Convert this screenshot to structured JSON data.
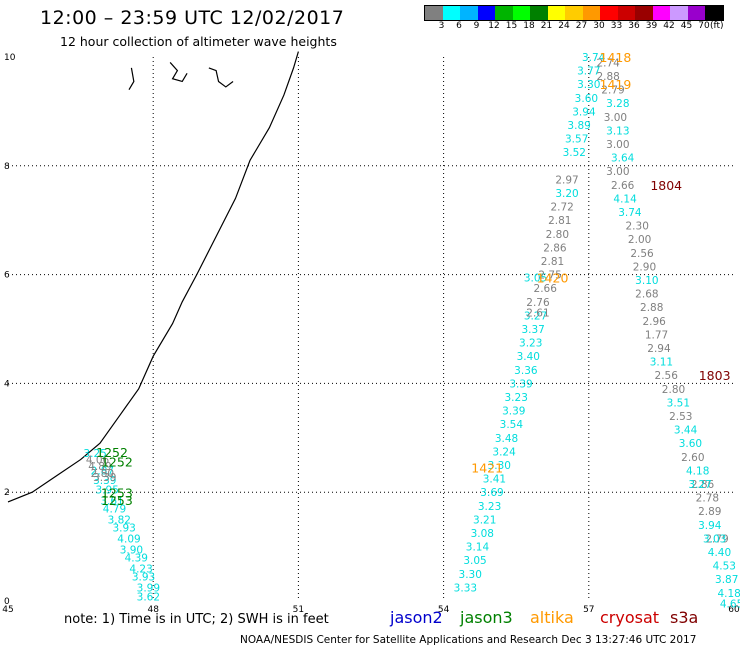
{
  "header": {
    "title": "12:00 – 23:59 UTC 12/02/2017",
    "subtitle": "12 hour collection of altimeter wave heights"
  },
  "legend": {
    "colors": [
      "#808080",
      "#00ffff",
      "#00b4ff",
      "#0000ff",
      "#00b400",
      "#00ff00",
      "#008000",
      "#ffff00",
      "#ffcc00",
      "#ff9900",
      "#ff0000",
      "#cc0000",
      "#990000",
      "#ff00ff",
      "#cc99ff",
      "#9900cc",
      "#000000"
    ],
    "labels": [
      "3",
      "6",
      "9",
      "12",
      "15",
      "18",
      "21",
      "24",
      "27",
      "30",
      "33",
      "36",
      "39",
      "42",
      "45",
      "70",
      "(ft)"
    ]
  },
  "axes": {
    "x_ticks": [
      "45",
      "48",
      "51",
      "54",
      "57",
      "60"
    ],
    "y_ticks": [
      "0",
      "2",
      "4",
      "6",
      "8",
      "10"
    ],
    "xlim": [
      45,
      60
    ],
    "ylim": [
      0,
      10
    ]
  },
  "colors": {
    "jason2": "#0000cc",
    "jason3": "#008000",
    "altika": "#ff9900",
    "cryosat": "#cc0000",
    "s3a": "#800000",
    "cyan": "#00dddd",
    "gray": "#808080",
    "coast": "#000000",
    "grid": "#000000"
  },
  "tracks": [
    {
      "id": "t1-cyan",
      "color": "cyan",
      "points": [
        [
          46.8,
          2.72,
          "3.25"
        ],
        [
          46.95,
          2.4,
          "2.87"
        ],
        [
          47.0,
          2.22,
          "3.39"
        ],
        [
          47.05,
          2.05,
          "3.95"
        ],
        [
          47.15,
          1.85,
          "3.61"
        ],
        [
          47.2,
          1.7,
          "4.79"
        ],
        [
          47.3,
          1.5,
          "3.82"
        ],
        [
          47.4,
          1.35,
          "3.93"
        ],
        [
          47.5,
          1.15,
          "4.09"
        ],
        [
          47.55,
          0.95,
          "3.90"
        ],
        [
          47.65,
          0.8,
          "4.39"
        ],
        [
          47.75,
          0.6,
          "4.23"
        ],
        [
          47.8,
          0.45,
          "3.93"
        ],
        [
          47.9,
          0.25,
          "3.99"
        ],
        [
          47.9,
          0.08,
          "3.62"
        ]
      ]
    },
    {
      "id": "t1-gray",
      "color": "gray",
      "points": [
        [
          46.85,
          2.6,
          "4.06"
        ],
        [
          46.9,
          2.48,
          "4.89"
        ],
        [
          46.95,
          2.35,
          "2.80"
        ],
        [
          47.0,
          2.28,
          "3.39"
        ]
      ]
    },
    {
      "id": "t2-cyan",
      "color": "cyan",
      "points": [
        [
          57.1,
          10.0,
          "3.74"
        ],
        [
          57.0,
          9.75,
          "3.77"
        ],
        [
          57.0,
          9.5,
          "3.30"
        ],
        [
          56.95,
          9.25,
          "3.60"
        ],
        [
          56.9,
          9.0,
          "3.94"
        ],
        [
          56.8,
          8.75,
          "3.89"
        ],
        [
          56.75,
          8.5,
          "3.57"
        ],
        [
          56.7,
          8.25,
          "3.52"
        ],
        [
          56.55,
          7.5,
          "3.20"
        ],
        [
          55.9,
          5.95,
          "3.05"
        ],
        [
          55.9,
          5.25,
          "3.27"
        ],
        [
          55.85,
          5.0,
          "3.37"
        ],
        [
          55.8,
          4.75,
          "3.23"
        ],
        [
          55.75,
          4.5,
          "3.40"
        ],
        [
          55.7,
          4.25,
          "3.36"
        ],
        [
          55.6,
          4.0,
          "3.39"
        ],
        [
          55.5,
          3.75,
          "3.23"
        ],
        [
          55.45,
          3.5,
          "3.39"
        ],
        [
          55.4,
          3.25,
          "3.54"
        ],
        [
          55.3,
          3.0,
          "3.48"
        ],
        [
          55.25,
          2.75,
          "3.24"
        ],
        [
          55.15,
          2.5,
          "3.30"
        ],
        [
          55.05,
          2.25,
          "3.41"
        ],
        [
          55.0,
          2.0,
          "3.69"
        ],
        [
          54.95,
          1.75,
          "3.23"
        ],
        [
          54.85,
          1.5,
          "3.21"
        ],
        [
          54.8,
          1.25,
          "3.08"
        ],
        [
          54.7,
          1.0,
          "3.14"
        ],
        [
          54.65,
          0.75,
          "3.05"
        ],
        [
          54.55,
          0.5,
          "3.30"
        ],
        [
          54.45,
          0.25,
          "3.33"
        ]
      ]
    },
    {
      "id": "t2-gray",
      "color": "gray",
      "points": [
        [
          56.55,
          7.75,
          "2.97"
        ],
        [
          56.45,
          7.25,
          "2.72"
        ],
        [
          56.4,
          7.0,
          "2.81"
        ],
        [
          56.35,
          6.75,
          "2.80"
        ],
        [
          56.3,
          6.5,
          "2.86"
        ],
        [
          56.25,
          6.25,
          "2.81"
        ],
        [
          56.2,
          6.0,
          "2.75"
        ],
        [
          56.1,
          5.75,
          "2.66"
        ],
        [
          55.95,
          5.5,
          "2.76"
        ],
        [
          55.95,
          5.3,
          "2.61"
        ]
      ]
    },
    {
      "id": "t3-gray",
      "color": "gray",
      "points": [
        [
          57.4,
          9.9,
          "2.74"
        ],
        [
          57.4,
          9.65,
          "2.88"
        ],
        [
          57.5,
          9.4,
          "2.79"
        ],
        [
          57.55,
          8.9,
          "3.00"
        ],
        [
          57.6,
          8.4,
          "3.00"
        ],
        [
          57.6,
          7.9,
          "3.00"
        ],
        [
          57.7,
          7.65,
          "2.66"
        ],
        [
          58.0,
          6.9,
          "2.30"
        ],
        [
          58.05,
          6.65,
          "2.00"
        ],
        [
          58.1,
          6.4,
          "2.56"
        ],
        [
          58.15,
          6.15,
          "2.90"
        ],
        [
          58.2,
          5.65,
          "2.68"
        ],
        [
          58.3,
          5.4,
          "2.88"
        ],
        [
          58.35,
          5.15,
          "2.96"
        ],
        [
          58.4,
          4.9,
          "1.77"
        ],
        [
          58.45,
          4.65,
          "2.94"
        ],
        [
          58.6,
          4.15,
          "2.56"
        ],
        [
          58.75,
          3.9,
          "2.80"
        ],
        [
          58.9,
          3.4,
          "2.53"
        ],
        [
          59.15,
          2.65,
          "2.60"
        ],
        [
          59.35,
          2.15,
          "2.86"
        ],
        [
          59.45,
          1.9,
          "2.78"
        ],
        [
          59.5,
          1.65,
          "2.89"
        ],
        [
          59.65,
          1.15,
          "2.79"
        ]
      ]
    },
    {
      "id": "t3-cyan",
      "color": "cyan",
      "points": [
        [
          57.6,
          9.15,
          "3.28"
        ],
        [
          57.6,
          8.65,
          "3.13"
        ],
        [
          57.7,
          8.15,
          "3.64"
        ],
        [
          57.75,
          7.4,
          "4.14"
        ],
        [
          57.85,
          7.15,
          "3.74"
        ],
        [
          58.2,
          5.9,
          "3.10"
        ],
        [
          58.5,
          4.4,
          "3.11"
        ],
        [
          58.85,
          3.65,
          "3.51"
        ],
        [
          59.0,
          3.15,
          "3.44"
        ],
        [
          59.1,
          2.9,
          "3.60"
        ],
        [
          59.25,
          2.4,
          "4.18"
        ],
        [
          59.3,
          2.15,
          "3.27"
        ],
        [
          59.5,
          1.4,
          "3.94"
        ],
        [
          59.6,
          1.15,
          "3.03"
        ],
        [
          59.7,
          0.9,
          "4.40"
        ],
        [
          59.8,
          0.65,
          "4.53"
        ],
        [
          59.85,
          0.4,
          "3.87"
        ],
        [
          59.9,
          0.15,
          "4.18"
        ],
        [
          59.95,
          -0.05,
          "4.65"
        ]
      ]
    }
  ],
  "times": [
    {
      "text": "1252",
      "lon": 47.15,
      "lat": 2.74,
      "sat": "jason3"
    },
    {
      "text": "1252",
      "lon": 47.25,
      "lat": 2.56,
      "sat": "jason3"
    },
    {
      "text": "1253",
      "lon": 47.25,
      "lat": 1.99,
      "sat": "jason3"
    },
    {
      "text": "1253",
      "lon": 47.25,
      "lat": 1.86,
      "sat": "jason3"
    },
    {
      "text": "1418",
      "lon": 57.55,
      "lat": 10.0,
      "sat": "altika"
    },
    {
      "text": "1419",
      "lon": 57.55,
      "lat": 9.5,
      "sat": "altika"
    },
    {
      "text": "1420",
      "lon": 56.25,
      "lat": 5.95,
      "sat": "altika"
    },
    {
      "text": "1421",
      "lon": 54.9,
      "lat": 2.45,
      "sat": "altika"
    },
    {
      "text": "1804",
      "lon": 58.6,
      "lat": 7.65,
      "sat": "s3a"
    },
    {
      "text": "1803",
      "lon": 59.6,
      "lat": 4.15,
      "sat": "s3a"
    }
  ],
  "coastline": [
    [
      45.0,
      1.82
    ],
    [
      45.5,
      2.0
    ],
    [
      46.0,
      2.3
    ],
    [
      46.5,
      2.6
    ],
    [
      46.9,
      2.9
    ],
    [
      47.3,
      3.4
    ],
    [
      47.7,
      3.9
    ],
    [
      48.0,
      4.5
    ],
    [
      48.4,
      5.1
    ],
    [
      48.6,
      5.5
    ],
    [
      48.9,
      6.0
    ],
    [
      49.3,
      6.7
    ],
    [
      49.7,
      7.4
    ],
    [
      50.0,
      8.1
    ],
    [
      50.4,
      8.7
    ],
    [
      50.7,
      9.3
    ],
    [
      50.9,
      9.8
    ],
    [
      51.0,
      10.1
    ]
  ],
  "islands": [
    [
      [
        47.55,
        9.8
      ],
      [
        47.6,
        9.55
      ],
      [
        47.5,
        9.4
      ]
    ],
    [
      [
        48.35,
        9.9
      ],
      [
        48.5,
        9.75
      ],
      [
        48.4,
        9.6
      ],
      [
        48.6,
        9.55
      ],
      [
        48.7,
        9.7
      ]
    ],
    [
      [
        49.15,
        9.8
      ],
      [
        49.3,
        9.75
      ],
      [
        49.35,
        9.55
      ],
      [
        49.5,
        9.45
      ],
      [
        49.65,
        9.55
      ]
    ]
  ],
  "footer": {
    "note": "note:  1) Time is in UTC;  2) SWH is in feet",
    "satellites": [
      "jason2",
      "jason3",
      "altika",
      "cryosat",
      "s3a"
    ],
    "credit": "NOAA/NESDIS Center for Satellite Applications and Research     Dec  3 13:27:46 UTC 2017"
  }
}
